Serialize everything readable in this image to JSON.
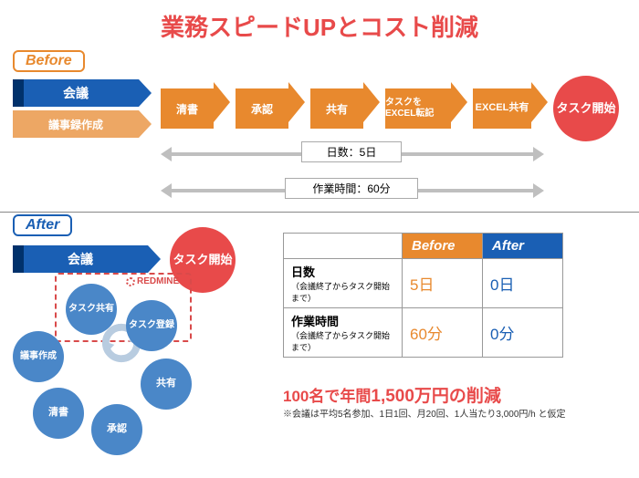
{
  "title": {
    "text": "業務スピードUPとコスト削減",
    "color": "#e84a4a"
  },
  "before": {
    "label": "Before",
    "label_color": "#e8892e",
    "meeting_color_dark": "#00316b",
    "meeting_color": "#1a5fb4",
    "step_color": "#e8892e",
    "step_color_light": "#eda764",
    "meeting": "会議",
    "minutes": "議事録作成",
    "steps": [
      "清書",
      "承認",
      "共有",
      "タスクをEXCEL転記",
      "EXCEL共有"
    ],
    "days_label": "日数：5日",
    "time_label": "作業時間：60分",
    "result": {
      "text": "タスク開始",
      "color": "#e84a4a"
    }
  },
  "after": {
    "label": "After",
    "label_color": "#1a5fb4",
    "meeting": "会議",
    "result": {
      "text": "タスク開始",
      "color": "#e84a4a"
    },
    "redmine": "REDMINE",
    "bubble_color": "#4a87c8",
    "bubbles": {
      "task_share": "タスク共有",
      "task_reg": "タスク登録",
      "minutes": "議事作成",
      "clean": "清書",
      "share": "共有",
      "approve": "承認"
    }
  },
  "table": {
    "before_color": "#e8892e",
    "after_color": "#1a5fb4",
    "col_before": "Before",
    "col_after": "After",
    "rows": [
      {
        "label": "日数",
        "sub": "（会議終了からタスク開始まで）",
        "before": "5日",
        "after": "0日"
      },
      {
        "label": "作業時間",
        "sub": "（会議終了からタスク開始まで）",
        "before": "60分",
        "after": "0分"
      }
    ]
  },
  "savings": {
    "text_a": "100名で年間",
    "text_b": "1,500万円の削減",
    "color": "#e84a4a"
  },
  "footnote": "※会議は平均5名参加、1日1回、月20回、1人当たり3,000円/h と仮定"
}
